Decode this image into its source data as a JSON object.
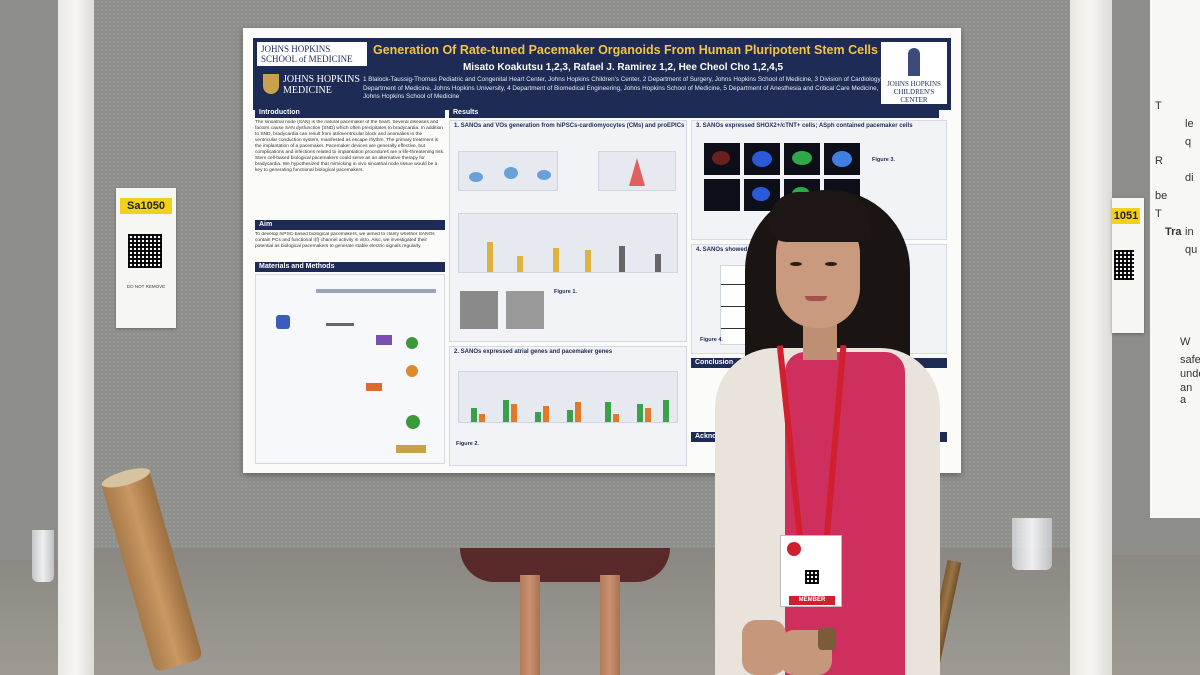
{
  "poster": {
    "title": "Generation Of Rate-tuned Pacemaker Organoids From Human Pluripotent Stem Cells",
    "authors": "Misato Koakutsu 1,2,3, Rafael J. Ramirez 1,2, Hee Cheol Cho 1,2,4,5",
    "affiliations": "1 Blalock-Taussig-Thomas Pediatric and Congenital Heart Center, Johns Hopkins Children's Center, 2 Department of Surgery, Johns Hopkins School of Medicine, 3 Division of Cardiology, Department of Medicine, Johns Hopkins University, 4 Department of Biomedical Engineering, Johns Hopkins School of Medicine, 5 Department of Anesthesia and Critical Care Medicine, Johns Hopkins School of Medicine",
    "logo_left_top": "JOHNS HOPKINS SCHOOL of MEDICINE",
    "logo_left_bottom": "JOHNS HOPKINS MEDICINE",
    "logo_right": "JOHNS HOPKINS CHILDREN'S CENTER",
    "sections": {
      "introduction": "Introduction",
      "aim": "Aim",
      "materials": "Materials and Methods",
      "results": "Results",
      "conclusion": "Conclusion",
      "acknowledgement": "Acknowl"
    },
    "intro_text": "The sinoatrial node (SAN) is the natural pacemaker of the heart. Several diseases and factors cause SAN dysfunction (SND) which often precipitates to bradycardia. In addition to SND, bradycardia can result from atrioventricular block and anomalies in the ventricular conduction system, manifested as escape rhythm. The primary treatment is the implantation of a pacemaker. Pacemaker devices are generally effective, but complications and infections related to implantation procedures are a life-threatening risk. Stem cell-based biological pacemakers could serve as an alternative therapy for bradycardia. We hypothesized that mimicking in vivo sinoatrial node tissue would be a key to generating functional biological pacemakers.",
    "aim_text": "To develop hiPSC-based biological pacemakers, we aimed to clarify whether SANOs contain PCs and functional I(f) channel activity in vitro. Also, we investigated their potential as biological pacemakers to generate stable electric signals regularly.",
    "panel1_title": "1. SANOs and VOs generation from hiPSCs-cardiomyocytes (CMs) and proEPICs",
    "panel2_title": "2. SANOs expressed atrial genes and pacemaker genes",
    "panel3_title": "3. SANOs expressed SHOX2+/cTNT+ cells; ASph contained pacemaker cells",
    "panel4_title": "4. SANOs showed faster",
    "figure1": "Figure 1.",
    "figure2": "Figure 2.",
    "figure3": "Figure 3.",
    "figure4": "Figure 4."
  },
  "side_card_left": {
    "tag": "Sa1050",
    "note": "DO NOT REMOVE"
  },
  "side_card_right": {
    "tag": "1051"
  },
  "badge": {
    "member": "MEMBER"
  },
  "edge_poster_letters": [
    "T",
    "le",
    "q",
    "R",
    "di",
    "be",
    "T",
    "in",
    "qu",
    "Tra",
    "W",
    "safe",
    "unde",
    "an a"
  ],
  "colors": {
    "poster_navy": "#1d2b55",
    "title_gold": "#f4c542",
    "tag_yellow": "#f2d11c",
    "lanyard_red": "#d11f2f",
    "shirt_pink": "#cf2f5d"
  }
}
